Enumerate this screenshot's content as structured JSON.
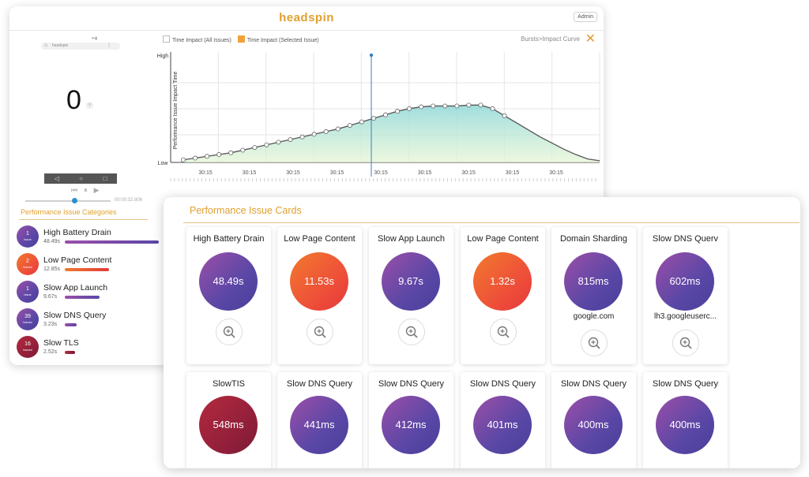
{
  "app": {
    "logo": "headspin",
    "admin_label": "Admin"
  },
  "phone": {
    "url": "headspin",
    "counter_value": "0",
    "counter_badge": "x",
    "time_label": "00:00:32.806"
  },
  "chart_data": {
    "type": "area",
    "legend": [
      "Time Impact (All Issues)",
      "Time Impact (Selected Issue)"
    ],
    "ylabel": "Performance Issue Impact Time",
    "y_ticks": [
      "High",
      "Low"
    ],
    "x_ticks": [
      "30:15",
      "30:15",
      "30:15",
      "30:15",
      "30:15",
      "30:15",
      "30:15",
      "30:15",
      "30:15"
    ],
    "values": [
      0.02,
      0.04,
      0.06,
      0.08,
      0.1,
      0.13,
      0.16,
      0.19,
      0.22,
      0.25,
      0.28,
      0.31,
      0.34,
      0.37,
      0.41,
      0.45,
      0.49,
      0.53,
      0.57,
      0.6,
      0.62,
      0.63,
      0.63,
      0.63,
      0.64,
      0.64,
      0.6,
      0.52,
      0.44,
      0.36,
      0.28,
      0.21,
      0.14,
      0.08,
      0.03,
      0.01
    ],
    "marked_points": 28,
    "title": "Bursts>Impact Curve"
  },
  "chart_title": "Bursts>Impact Curve",
  "categories": {
    "title": "Performance Issue Categories",
    "items": [
      {
        "count": "1",
        "unit": "Issue",
        "name": "High Battery Drain",
        "value": "48.49s",
        "bar": 0.95,
        "style": "blue"
      },
      {
        "count": "2",
        "unit": "Issues",
        "name": "Low Page Content",
        "value": "12.85s",
        "bar": 0.45,
        "style": "orange"
      },
      {
        "count": "1",
        "unit": "Issue",
        "name": "Slow App Launch",
        "value": "9.67s",
        "bar": 0.35,
        "style": "blue"
      },
      {
        "count": "39",
        "unit": "Issues",
        "name": "Slow DNS Query",
        "value": "3.23s",
        "bar": 0.12,
        "style": "blue"
      },
      {
        "count": "16",
        "unit": "Issues",
        "name": "Slow TLS",
        "value": "2.52s",
        "bar": 0.1,
        "style": "red"
      }
    ]
  },
  "cards": {
    "title": "Performance Issue Cards",
    "row1": [
      {
        "title": "High Battery Drain",
        "value": "48.49s",
        "sub": "",
        "style": "blue"
      },
      {
        "title": "Low Page Content",
        "value": "11.53s",
        "sub": "",
        "style": "orange"
      },
      {
        "title": "Slow App Launch",
        "value": "9.67s",
        "sub": "",
        "style": "blue"
      },
      {
        "title": "Low Page Content",
        "value": "1.32s",
        "sub": "",
        "style": "orange"
      },
      {
        "title": "Domain Sharding",
        "value": "815ms",
        "sub": "google.com",
        "style": "blue"
      },
      {
        "title": "Slow DNS Querv",
        "value": "602ms",
        "sub": "lh3.googleuserc...",
        "style": "blue"
      }
    ],
    "row2": [
      {
        "title": "SlowTIS",
        "value": "548ms",
        "style": "red"
      },
      {
        "title": "Slow DNS Query",
        "value": "441ms",
        "style": "blue"
      },
      {
        "title": "Slow DNS Query",
        "value": "412ms",
        "style": "blue"
      },
      {
        "title": "Slow DNS Query",
        "value": "401ms",
        "style": "blue"
      },
      {
        "title": "Slow DNS Query",
        "value": "400ms",
        "style": "blue"
      },
      {
        "title": "Slow DNS Query",
        "value": "400ms",
        "style": "blue"
      }
    ]
  }
}
